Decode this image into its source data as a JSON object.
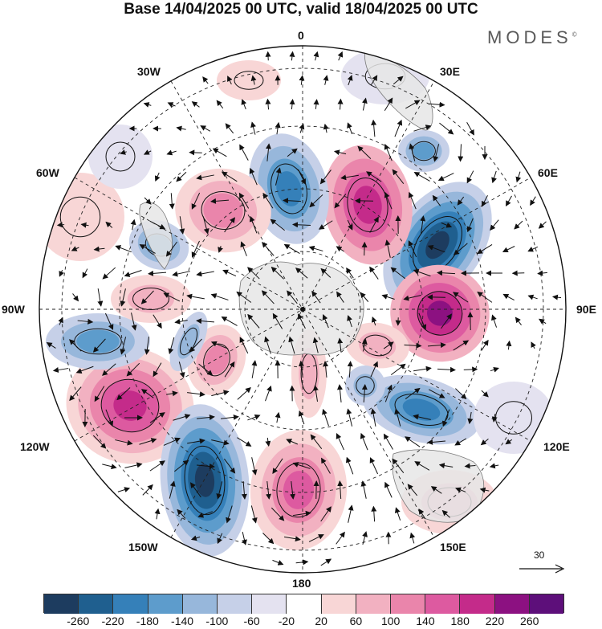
{
  "title": "Base 14/04/2025 00 UTC, valid 18/04/2025 00 UTC",
  "brand": "MODES",
  "brand_mark": "©",
  "longitude_labels": {
    "top": "0",
    "top_left": "30W",
    "top_right": "30E",
    "upper_left": "60W",
    "upper_right": "60E",
    "left": "90W",
    "right": "90E",
    "lower_left": "120W",
    "lower_right": "120E",
    "bottom_left": "150W",
    "bottom_right": "150E",
    "bottom": "180"
  },
  "reference_vector": "30",
  "colorbar": {
    "colors": [
      "#1d3c5f",
      "#1f5f8f",
      "#3580b9",
      "#5d9ccc",
      "#97b7db",
      "#c6d0e8",
      "#e4e2f0",
      "#ffffff",
      "#f8d6d6",
      "#f2b1c1",
      "#ea85ab",
      "#dd5aa0",
      "#c42b8a",
      "#8c1181",
      "#5d0f7a"
    ],
    "tick_labels": [
      "-260",
      "-220",
      "-180",
      "-140",
      "-100",
      "-60",
      "-20",
      "20",
      "60",
      "100",
      "140",
      "180",
      "220",
      "260"
    ]
  }
}
